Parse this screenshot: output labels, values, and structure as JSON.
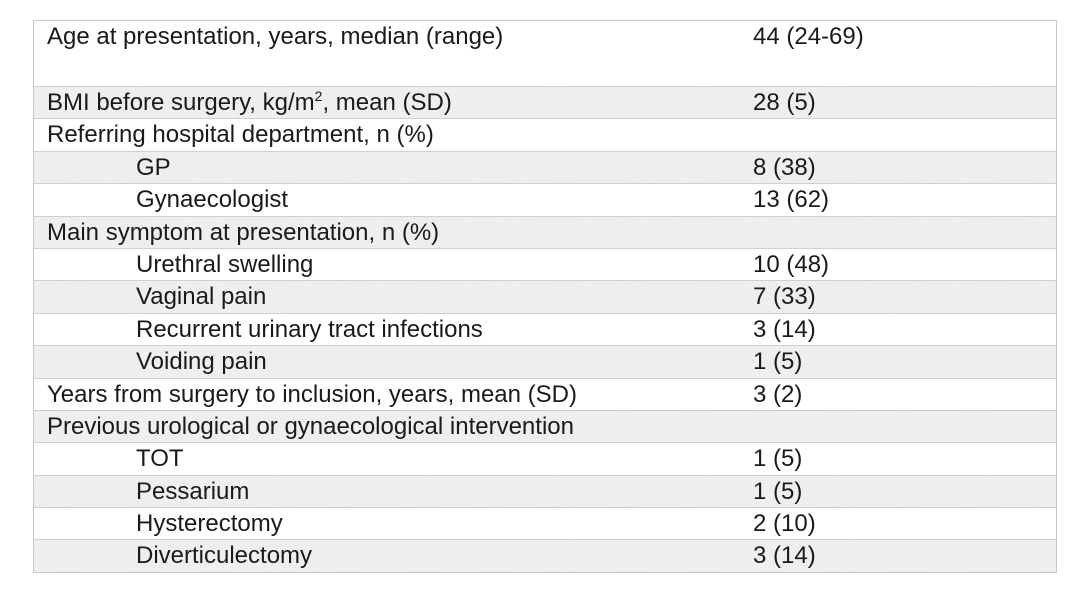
{
  "table": {
    "rows": [
      {
        "label": "Age at presentation, years, median (range)",
        "value": "44 (24-69)"
      },
      {
        "label_pre": "BMI before surgery, kg/m",
        "label_sup": "2",
        "label_post": ", mean (SD)",
        "value": "28 (5)"
      },
      {
        "label": "Referring hospital department, n (%)",
        "value": ""
      },
      {
        "label": "GP",
        "value": "8 (38)"
      },
      {
        "label": "Gynaecologist",
        "value": "13 (62)"
      },
      {
        "label": "Main symptom at presentation, n (%)",
        "value": ""
      },
      {
        "label": "Urethral swelling",
        "value": "10 (48)"
      },
      {
        "label": "Vaginal pain",
        "value": "7 (33)"
      },
      {
        "label": "Recurrent urinary tract infections",
        "value": "3 (14)"
      },
      {
        "label": "Voiding pain",
        "value": "1 (5)"
      },
      {
        "label": "Years from surgery to inclusion, years, mean (SD)",
        "value": "3 (2)"
      },
      {
        "label": "Previous urological or gynaecological intervention",
        "value": ""
      },
      {
        "label": "TOT",
        "value": "1 (5)"
      },
      {
        "label": "Pessarium",
        "value": "1 (5)"
      },
      {
        "label": "Hysterectomy",
        "value": "2 (10)"
      },
      {
        "label": "Diverticulectomy",
        "value": "3 (14)"
      }
    ]
  }
}
